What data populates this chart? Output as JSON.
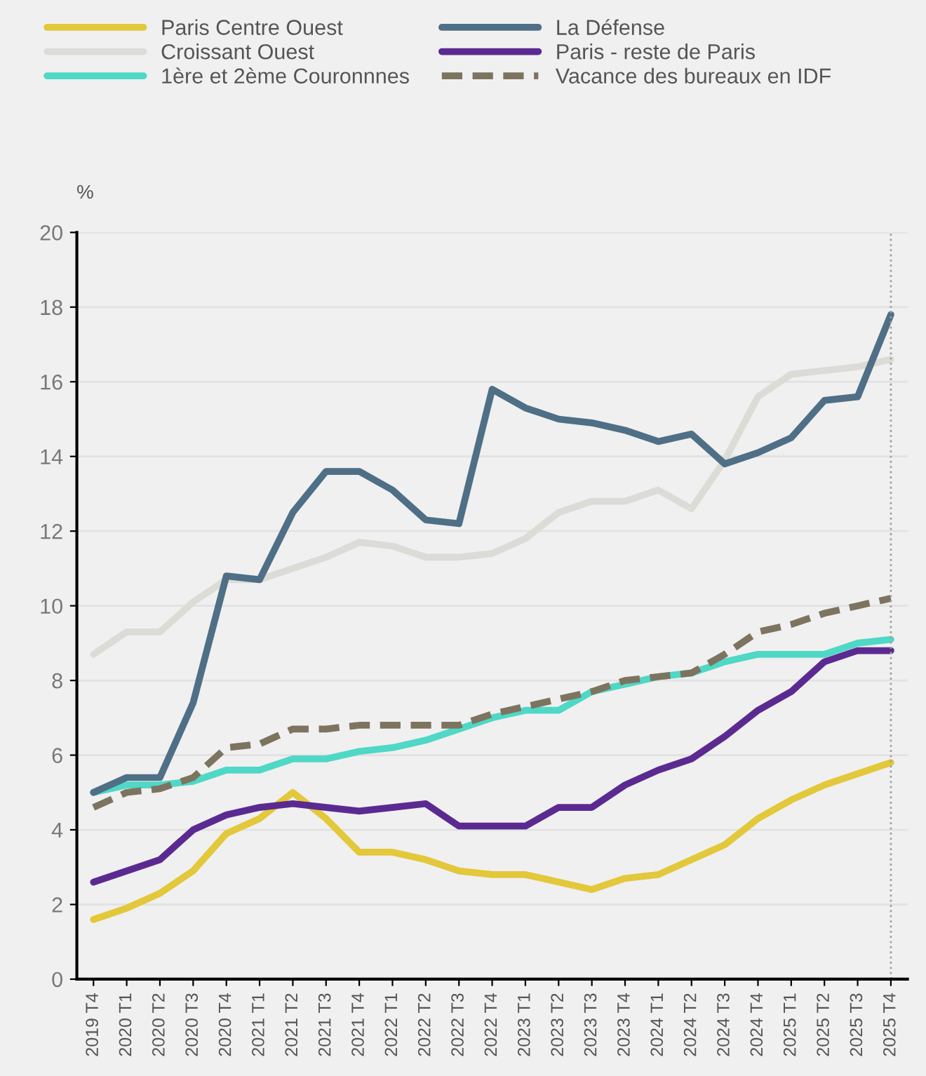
{
  "chart_data": {
    "type": "line",
    "ylabel": "%",
    "categories": [
      "2019 T4",
      "2020 T1",
      "2020 T2",
      "2020 T3",
      "2020 T4",
      "2021 T1",
      "2021 T2",
      "2021 T3",
      "2021 T4",
      "2022 T1",
      "2022 T2",
      "2022 T3",
      "2022 T4",
      "2023 T1",
      "2023 T2",
      "2023 T3",
      "2023 T4",
      "2024 T1",
      "2024 T2",
      "2024 T3",
      "2024 T4",
      "2025 T1",
      "2025 T2",
      "2025 T3",
      "2025 T4"
    ],
    "series": [
      {
        "name": "Paris Centre Ouest",
        "color": "#e2c83a",
        "values": [
          1.6,
          1.9,
          2.3,
          2.9,
          3.9,
          4.3,
          5.0,
          4.3,
          3.4,
          3.4,
          3.2,
          2.9,
          2.8,
          2.8,
          2.6,
          2.4,
          2.7,
          2.8,
          3.2,
          3.6,
          4.3,
          4.8,
          5.2,
          5.5,
          5.8
        ]
      },
      {
        "name": "Croissant Ouest",
        "color": "#dcdcd6",
        "values": [
          8.7,
          9.3,
          9.3,
          10.1,
          10.7,
          10.7,
          11.0,
          11.3,
          11.7,
          11.6,
          11.3,
          11.3,
          11.4,
          11.8,
          12.5,
          12.8,
          12.8,
          13.1,
          12.6,
          13.9,
          15.6,
          16.2,
          16.3,
          16.4,
          16.6
        ]
      },
      {
        "name": "1ère et 2ème Couronnnes",
        "color": "#4fd8c6",
        "values": [
          5.0,
          5.2,
          5.2,
          5.3,
          5.6,
          5.6,
          5.9,
          5.9,
          6.1,
          6.2,
          6.4,
          6.7,
          7.0,
          7.2,
          7.2,
          7.7,
          7.9,
          8.1,
          8.2,
          8.5,
          8.7,
          8.7,
          8.7,
          9.0,
          9.1
        ]
      },
      {
        "name": "La Défense",
        "color": "#4f6f86",
        "values": [
          5.0,
          5.4,
          5.4,
          7.4,
          10.8,
          10.7,
          12.5,
          13.6,
          13.6,
          13.1,
          12.3,
          12.2,
          15.8,
          15.3,
          15.0,
          14.9,
          14.7,
          14.4,
          14.6,
          13.8,
          14.1,
          14.5,
          15.5,
          15.6,
          17.8
        ]
      },
      {
        "name": "Paris - reste de Paris",
        "color": "#5b2a91",
        "values": [
          2.6,
          2.9,
          3.2,
          4.0,
          4.4,
          4.6,
          4.7,
          4.6,
          4.5,
          4.6,
          4.7,
          4.1,
          4.1,
          4.1,
          4.6,
          4.6,
          5.2,
          5.6,
          5.9,
          6.5,
          7.2,
          7.7,
          8.5,
          8.8,
          8.8
        ]
      },
      {
        "name": "Vacance des bureaux en IDF",
        "color": "#7d7460",
        "line_style": "dashed",
        "values": [
          4.6,
          5.0,
          5.1,
          5.4,
          6.2,
          6.3,
          6.7,
          6.7,
          6.8,
          6.8,
          6.8,
          6.8,
          7.1,
          7.3,
          7.5,
          7.7,
          8.0,
          8.1,
          8.2,
          8.7,
          9.3,
          9.5,
          9.8,
          10.0,
          10.2
        ]
      }
    ],
    "ylim": [
      0,
      20
    ],
    "yticks": [
      0,
      2,
      4,
      6,
      8,
      10,
      12,
      14,
      16,
      18,
      20
    ],
    "grid": "y",
    "legend": "top",
    "line_style": "solid",
    "ref_lines": [
      {
        "axis": "x",
        "value": "2025 T4",
        "color": "#a0a0a0",
        "line_style": "dotted"
      }
    ]
  }
}
